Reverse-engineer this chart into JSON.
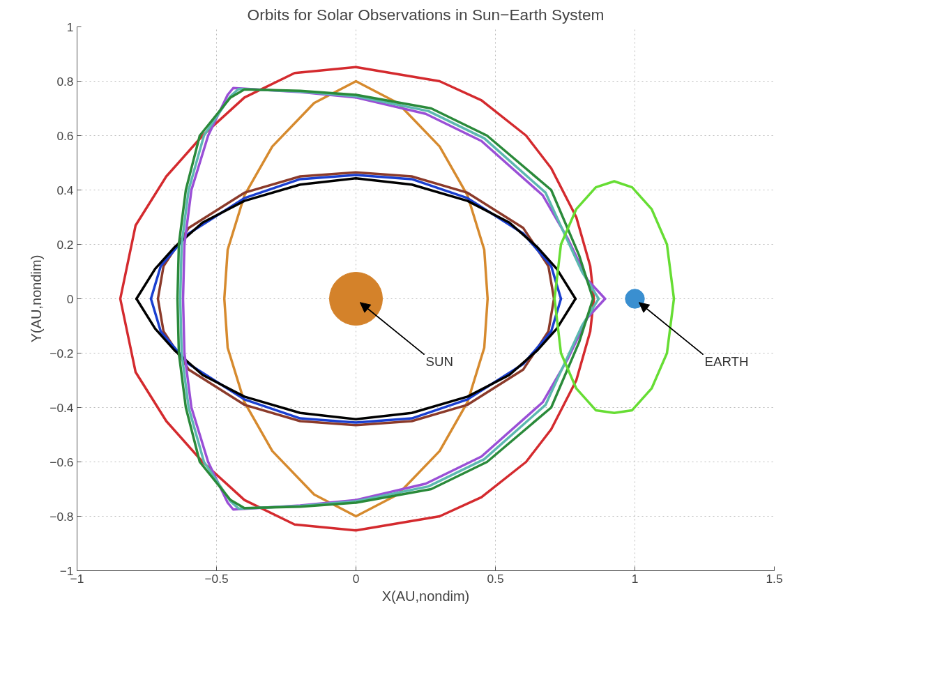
{
  "chart_data": {
    "type": "line",
    "title": "Orbits for Solar Observations in Sun−Earth System",
    "xlabel": "X(AU,nondim)",
    "ylabel": "Y(AU,nondim)",
    "xlim": [
      -1,
      1.5
    ],
    "ylim": [
      -1,
      1
    ],
    "xticks": [
      {
        "value": -1,
        "label": "−1"
      },
      {
        "value": -0.5,
        "label": "−0.5"
      },
      0,
      0.5,
      1,
      1.5
    ],
    "yticks": [
      {
        "value": -1,
        "label": "−1"
      },
      {
        "value": -0.8,
        "label": "−0.8"
      },
      {
        "value": -0.6,
        "label": "−0.6"
      },
      {
        "value": -0.4,
        "label": "−0.4"
      },
      {
        "value": -0.2,
        "label": "−0.2"
      },
      0,
      0.2,
      0.4,
      0.6,
      0.8,
      1
    ],
    "grid": true,
    "line_style": "solid",
    "series": [
      {
        "color": "#d42a2e",
        "x": [
          0,
          0.3,
          0.45,
          0.61,
          0.7,
          0.79,
          0.84,
          0.853,
          0.84,
          0.79,
          0.7,
          0.61,
          0.45,
          0.3,
          0,
          -0.22,
          -0.4,
          -0.55,
          -0.68,
          -0.79,
          -0.845,
          -0.79,
          -0.68,
          -0.55,
          -0.4,
          -0.22,
          0
        ],
        "values": [
          0.852,
          0.8,
          0.73,
          0.6,
          0.48,
          0.3,
          0.12,
          0,
          -0.12,
          -0.3,
          -0.48,
          -0.6,
          -0.73,
          -0.8,
          -0.852,
          -0.83,
          -0.74,
          -0.6,
          -0.45,
          -0.27,
          0,
          0.27,
          0.45,
          0.6,
          0.74,
          0.83,
          0.852
        ]
      },
      {
        "color": "#d68a2e",
        "x": [
          0,
          0.15,
          0.3,
          0.4,
          0.46,
          0.472,
          0.46,
          0.4,
          0.3,
          0.15,
          0,
          -0.15,
          -0.3,
          -0.4,
          -0.46,
          -0.472,
          -0.46,
          -0.4,
          -0.3,
          -0.15,
          0
        ],
        "values": [
          0.8,
          0.72,
          0.56,
          0.38,
          0.18,
          0,
          -0.18,
          -0.38,
          -0.56,
          -0.72,
          -0.8,
          -0.72,
          -0.56,
          -0.38,
          -0.18,
          0,
          0.18,
          0.38,
          0.56,
          0.72,
          0.8
        ]
      },
      {
        "color": "#8b3a2a",
        "x": [
          -0.71,
          -0.69,
          -0.6,
          -0.4,
          -0.2,
          0,
          0.2,
          0.4,
          0.6,
          0.69,
          0.71,
          0.69,
          0.6,
          0.4,
          0.2,
          0,
          -0.2,
          -0.4,
          -0.6,
          -0.69,
          -0.71
        ],
        "values": [
          0,
          0.12,
          0.26,
          0.39,
          0.45,
          0.465,
          0.45,
          0.39,
          0.26,
          0.12,
          0,
          -0.12,
          -0.26,
          -0.39,
          -0.45,
          -0.465,
          -0.45,
          -0.39,
          -0.26,
          -0.12,
          0
        ]
      },
      {
        "color": "#1a3fd0",
        "x": [
          -0.735,
          -0.7,
          -0.6,
          -0.4,
          -0.2,
          0,
          0.2,
          0.4,
          0.6,
          0.7,
          0.735,
          0.7,
          0.6,
          0.4,
          0.2,
          0,
          -0.2,
          -0.4,
          -0.6,
          -0.7,
          -0.735
        ],
        "values": [
          0,
          0.12,
          0.24,
          0.37,
          0.44,
          0.455,
          0.44,
          0.37,
          0.24,
          0.12,
          0,
          -0.12,
          -0.24,
          -0.37,
          -0.44,
          -0.455,
          -0.44,
          -0.37,
          -0.24,
          -0.12,
          0
        ]
      },
      {
        "color": "#000000",
        "x": [
          -0.787,
          -0.72,
          -0.65,
          -0.55,
          -0.4,
          -0.2,
          0,
          0.2,
          0.4,
          0.55,
          0.65,
          0.72,
          0.787,
          0.72,
          0.65,
          0.55,
          0.4,
          0.2,
          0,
          -0.2,
          -0.4,
          -0.55,
          -0.65,
          -0.72,
          -0.787
        ],
        "values": [
          0,
          0.11,
          0.19,
          0.28,
          0.36,
          0.42,
          0.443,
          0.42,
          0.36,
          0.28,
          0.19,
          0.11,
          0,
          -0.11,
          -0.19,
          -0.28,
          -0.36,
          -0.42,
          -0.443,
          -0.42,
          -0.36,
          -0.28,
          -0.19,
          -0.11,
          0
        ]
      },
      {
        "color": "#9a4fd6",
        "x": [
          0.893,
          0.83,
          0.76,
          0.67,
          0.45,
          0.25,
          0,
          -0.2,
          -0.44,
          -0.46,
          -0.53,
          -0.59,
          -0.615,
          -0.62,
          -0.615,
          -0.59,
          -0.53,
          -0.46,
          -0.44,
          -0.2,
          0,
          0.25,
          0.45,
          0.67,
          0.76,
          0.83,
          0.893
        ],
        "values": [
          0,
          0.07,
          0.22,
          0.38,
          0.58,
          0.68,
          0.74,
          0.76,
          0.775,
          0.75,
          0.6,
          0.4,
          0.2,
          0,
          -0.2,
          -0.4,
          -0.6,
          -0.75,
          -0.775,
          -0.76,
          -0.74,
          -0.68,
          -0.58,
          -0.38,
          -0.22,
          -0.07,
          0
        ]
      },
      {
        "color": "#5cb8b0",
        "x": [
          0.87,
          0.81,
          0.72,
          0.68,
          0.46,
          0.26,
          0,
          -0.2,
          -0.42,
          -0.45,
          -0.545,
          -0.6,
          -0.625,
          -0.63,
          -0.625,
          -0.6,
          -0.545,
          -0.45,
          -0.42,
          -0.2,
          0,
          0.26,
          0.46,
          0.68,
          0.72,
          0.81,
          0.87
        ],
        "values": [
          0,
          0.1,
          0.3,
          0.39,
          0.59,
          0.69,
          0.745,
          0.762,
          0.772,
          0.745,
          0.6,
          0.4,
          0.2,
          0,
          -0.2,
          -0.4,
          -0.6,
          -0.745,
          -0.772,
          -0.762,
          -0.745,
          -0.69,
          -0.59,
          -0.39,
          -0.3,
          -0.1,
          0
        ]
      },
      {
        "color": "#2a8a3a",
        "x": [
          0.85,
          0.8,
          0.7,
          0.47,
          0.27,
          0,
          -0.2,
          -0.4,
          -0.45,
          -0.56,
          -0.61,
          -0.635,
          -0.64,
          -0.635,
          -0.61,
          -0.56,
          -0.45,
          -0.4,
          -0.2,
          0,
          0.27,
          0.47,
          0.7,
          0.8,
          0.85
        ],
        "values": [
          0,
          0.16,
          0.4,
          0.6,
          0.7,
          0.75,
          0.765,
          0.77,
          0.74,
          0.6,
          0.4,
          0.2,
          0,
          -0.2,
          -0.4,
          -0.6,
          -0.74,
          -0.77,
          -0.765,
          -0.75,
          -0.7,
          -0.6,
          -0.4,
          -0.16,
          0
        ]
      },
      {
        "color": "#66dd33",
        "x": [
          1.14,
          1.115,
          1.06,
          0.99,
          0.926,
          0.86,
          0.79,
          0.735,
          0.712,
          0.735,
          0.79,
          0.86,
          0.926,
          0.99,
          1.06,
          1.115,
          1.14
        ],
        "values": [
          0,
          0.2,
          0.33,
          0.41,
          0.432,
          0.41,
          0.33,
          0.2,
          0,
          -0.2,
          -0.33,
          -0.41,
          -0.42,
          -0.41,
          -0.33,
          -0.2,
          0
        ]
      },
      {
        "type": "bubble",
        "marker": "circle",
        "x": [
          0,
          1
        ],
        "values": [
          0,
          0
        ],
        "colors": [
          "#d4822a",
          "#3a8fd0"
        ],
        "sizes": [
          1,
          0.13
        ]
      }
    ],
    "annotations": [
      {
        "text": "SUN",
        "x": 0,
        "y": 0
      },
      {
        "text": "EARTH",
        "x": 1,
        "y": 0
      }
    ]
  }
}
